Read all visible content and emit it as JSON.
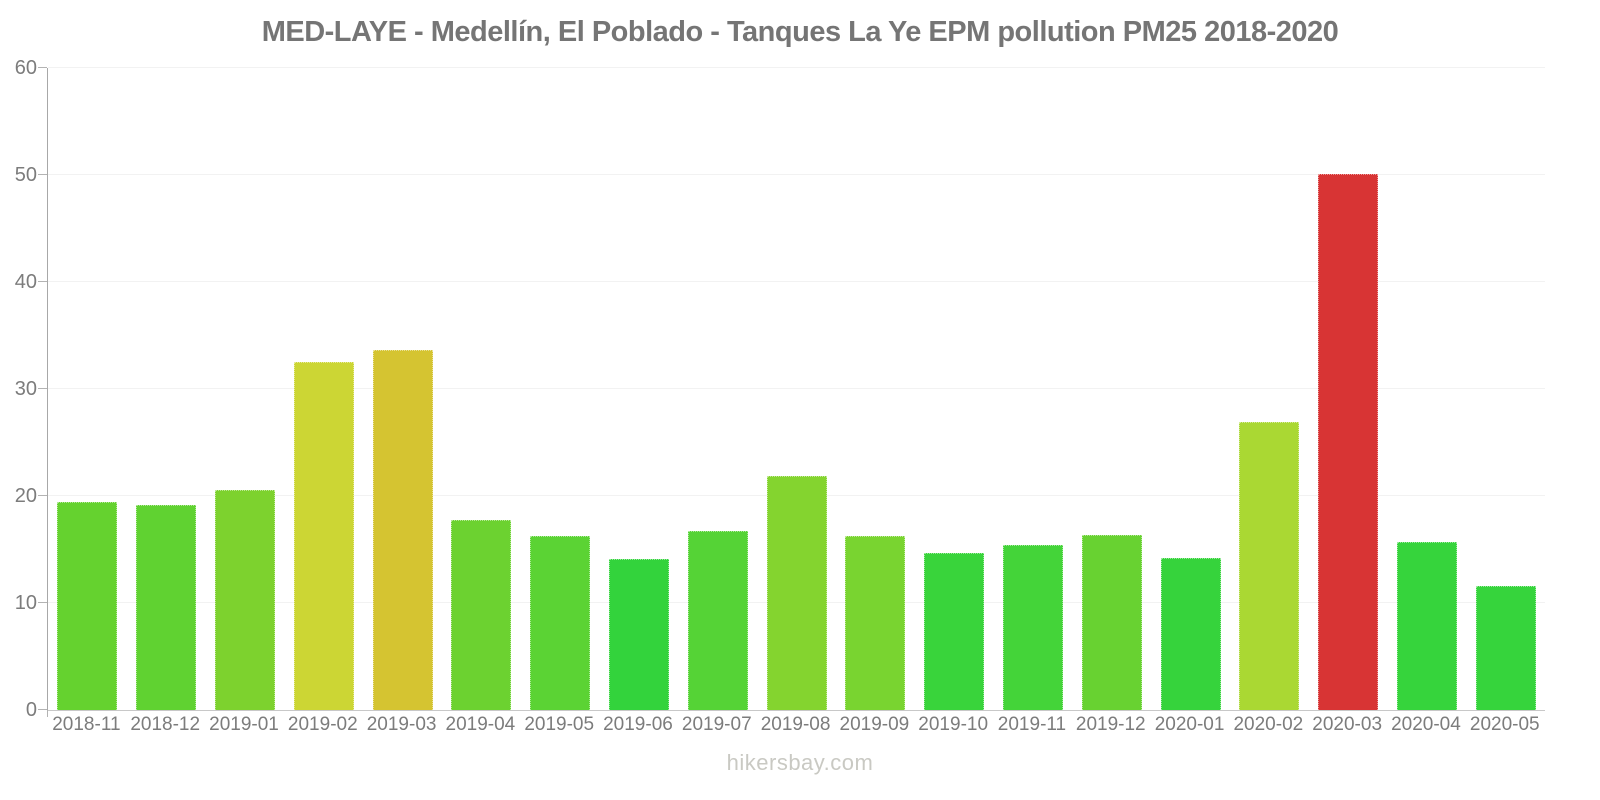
{
  "page": {
    "watermark": "hikersbay.com"
  },
  "chart_data": {
    "type": "bar",
    "title": "MED-LAYE - Medellín, El Poblado - Tanques La Ye EPM pollution PM25 2018-2020",
    "xlabel": "",
    "ylabel": "",
    "ylim": [
      0,
      60
    ],
    "yticks": [
      0,
      10,
      20,
      30,
      40,
      50,
      60
    ],
    "grid": "horizontal-light",
    "legend": "none",
    "categories": [
      "2018-11",
      "2018-12",
      "2019-01",
      "2019-02",
      "2019-03",
      "2019-04",
      "2019-05",
      "2019-06",
      "2019-07",
      "2019-08",
      "2019-09",
      "2019-10",
      "2019-11",
      "2019-12",
      "2020-01",
      "2020-02",
      "2020-03",
      "2020-04",
      "2020-05"
    ],
    "values": [
      19.4,
      19.2,
      20.6,
      32.5,
      33.6,
      17.8,
      16.3,
      14.1,
      16.7,
      21.9,
      16.3,
      14.7,
      15.4,
      16.4,
      14.2,
      26.9,
      50.1,
      15.7,
      11.6
    ],
    "bar_colors": [
      "#65d22f",
      "#60d231",
      "#7dd22e",
      "#ccd634",
      "#d5c431",
      "#6cd230",
      "#5bd334",
      "#33d33c",
      "#55d336",
      "#84d42f",
      "#79d430",
      "#39d43b",
      "#44d439",
      "#68d231",
      "#36d33c",
      "#aad833",
      "#d83434",
      "#36d43c",
      "#36d43c"
    ],
    "colors_meaning": {
      "green": "#36d43c",
      "yellow_green": "#aad833",
      "yellow": "#ccd634",
      "mustard": "#d5c431",
      "red": "#d83434"
    },
    "axis_color": "#a8a8a8",
    "tick_label_color": "#7c7c7c",
    "title_color": "#757575"
  }
}
